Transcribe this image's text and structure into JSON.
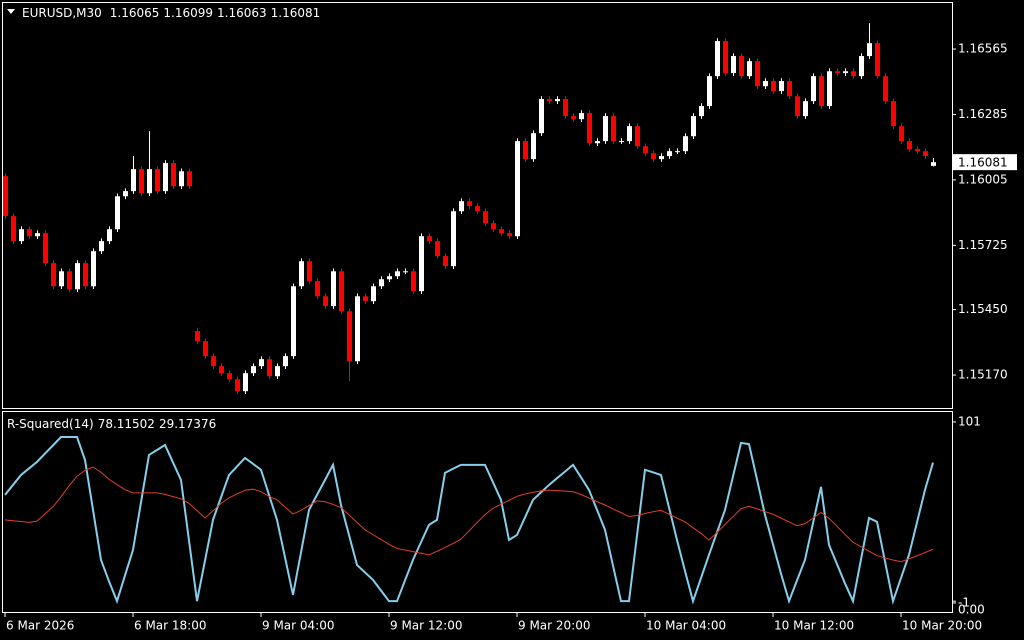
{
  "chart_data": [
    {
      "type": "candlestick",
      "title": "EURUSD,M30",
      "categories": [
        "6 Mar 2026",
        null,
        null,
        null,
        null,
        null,
        null,
        null,
        null,
        null,
        null,
        null,
        null,
        null,
        null,
        null,
        "6 Mar 18:00",
        null,
        null,
        null,
        null,
        null,
        null,
        null,
        null,
        null,
        null,
        null,
        null,
        null,
        null,
        null,
        "9 Mar 04:00",
        null,
        null,
        null,
        null,
        null,
        null,
        null,
        null,
        null,
        null,
        null,
        null,
        null,
        null,
        null,
        "9 Mar 12:00",
        null,
        null,
        null,
        null,
        null,
        null,
        null,
        null,
        null,
        null,
        null,
        null,
        null,
        null,
        null,
        "9 Mar 20:00",
        null,
        null,
        null,
        null,
        null,
        null,
        null,
        null,
        null,
        null,
        null,
        null,
        null,
        null,
        null,
        "10 Mar 04:00",
        null,
        null,
        null,
        null,
        null,
        null,
        null,
        null,
        null,
        null,
        null,
        null,
        null,
        null,
        null,
        "10 Mar 12:00",
        null,
        null,
        null,
        null,
        null,
        null,
        null,
        null,
        null,
        null,
        null,
        null,
        null,
        null,
        null,
        "10 Mar 20:00",
        null,
        null,
        null,
        null
      ],
      "open": [
        1.16021,
        1.1585,
        1.15743,
        1.15794,
        1.15764,
        1.15777,
        1.15649,
        1.1555,
        1.15614,
        1.15537,
        1.15649,
        1.1555,
        1.157,
        1.15743,
        1.15794,
        1.15935,
        1.15957,
        1.16051,
        1.15948,
        1.16051,
        1.15957,
        1.16077,
        1.15978,
        1.16042,
        1.15358,
        1.15315,
        1.15251,
        1.15208,
        1.15178,
        1.15152,
        1.15101,
        1.15178,
        1.15208,
        1.15238,
        1.15165,
        1.15208,
        1.15251,
        1.1555,
        1.15657,
        1.15572,
        1.15507,
        1.15465,
        1.15614,
        1.15443,
        1.15229,
        1.15507,
        1.15486,
        1.1555,
        1.1558,
        1.15593,
        1.15614,
        1.15614,
        1.15529,
        1.15764,
        1.15743,
        1.15679,
        1.15636,
        1.15871,
        1.15914,
        1.15893,
        1.15871,
        1.1582,
        1.15794,
        1.15777,
        1.15764,
        1.16171,
        1.16094,
        1.16205,
        1.16351,
        1.16342,
        1.16351,
        1.16278,
        1.16265,
        1.16291,
        1.16162,
        1.16171,
        1.16278,
        1.16171,
        1.16171,
        1.16235,
        1.16149,
        1.16119,
        1.16094,
        1.16107,
        1.16128,
        1.16128,
        1.16192,
        1.16278,
        1.16321,
        1.16449,
        1.16599,
        1.16462,
        1.16535,
        1.16449,
        1.16513,
        1.16406,
        1.16428,
        1.16385,
        1.16428,
        1.16363,
        1.16278,
        1.16342,
        1.16449,
        1.16321,
        1.1647,
        1.16462,
        1.1647,
        1.16449,
        1.16535,
        1.1659,
        1.16449,
        1.16342,
        1.16235,
        1.16171,
        1.16137,
        1.16128,
        1.16065
      ],
      "high": [
        1.16033,
        1.15862,
        1.15806,
        1.15806,
        1.15789,
        1.15789,
        1.15661,
        1.15626,
        1.15626,
        1.15661,
        1.15661,
        1.15712,
        1.15755,
        1.15806,
        1.15947,
        1.15969,
        1.16107,
        1.16063,
        1.16214,
        1.16063,
        1.16089,
        1.16089,
        1.16054,
        1.16054,
        1.1537,
        1.15327,
        1.15263,
        1.1522,
        1.1519,
        1.15164,
        1.1519,
        1.1522,
        1.1525,
        1.1525,
        1.1522,
        1.15263,
        1.15562,
        1.15669,
        1.15669,
        1.15584,
        1.15519,
        1.15626,
        1.15626,
        1.15455,
        1.15519,
        1.15519,
        1.15562,
        1.15592,
        1.15605,
        1.15626,
        1.15626,
        1.15626,
        1.15776,
        1.15776,
        1.15755,
        1.15691,
        1.15883,
        1.15926,
        1.15926,
        1.15905,
        1.15883,
        1.15832,
        1.15806,
        1.15789,
        1.16183,
        1.16183,
        1.16217,
        1.16363,
        1.16363,
        1.16363,
        1.16363,
        1.1629,
        1.16303,
        1.16303,
        1.16183,
        1.1629,
        1.1629,
        1.16183,
        1.16247,
        1.16247,
        1.16161,
        1.16131,
        1.16119,
        1.1614,
        1.1614,
        1.16204,
        1.1629,
        1.16333,
        1.16461,
        1.16611,
        1.16611,
        1.16547,
        1.16547,
        1.16525,
        1.16525,
        1.1644,
        1.1644,
        1.1644,
        1.1644,
        1.16375,
        1.16354,
        1.16461,
        1.16461,
        1.16482,
        1.16482,
        1.16482,
        1.16482,
        1.16547,
        1.16676,
        1.16602,
        1.16461,
        1.16354,
        1.16247,
        1.16183,
        1.16149,
        1.1614,
        1.16099
      ],
      "low": [
        1.15838,
        1.15731,
        1.15731,
        1.15752,
        1.15752,
        1.15637,
        1.15538,
        1.15538,
        1.15525,
        1.15525,
        1.15538,
        1.15538,
        1.15688,
        1.15731,
        1.15782,
        1.15923,
        1.15945,
        1.15936,
        1.15936,
        1.15945,
        1.15945,
        1.15966,
        1.15966,
        1.15966,
        1.15303,
        1.15239,
        1.15196,
        1.15166,
        1.1514,
        1.15089,
        1.15089,
        1.15166,
        1.15196,
        1.15153,
        1.15153,
        1.15196,
        1.15239,
        1.15538,
        1.1556,
        1.15495,
        1.15453,
        1.15453,
        1.15431,
        1.15144,
        1.15217,
        1.15474,
        1.15474,
        1.15538,
        1.15568,
        1.15581,
        1.15602,
        1.15517,
        1.15517,
        1.15731,
        1.15667,
        1.15624,
        1.15624,
        1.15859,
        1.15881,
        1.15859,
        1.15808,
        1.15782,
        1.15765,
        1.15752,
        1.15752,
        1.16082,
        1.16082,
        1.16193,
        1.1633,
        1.1633,
        1.16266,
        1.16253,
        1.16253,
        1.1615,
        1.1615,
        1.16159,
        1.16159,
        1.16159,
        1.16159,
        1.16137,
        1.16107,
        1.16082,
        1.16082,
        1.16095,
        1.16116,
        1.16116,
        1.1618,
        1.16266,
        1.16309,
        1.16437,
        1.1645,
        1.1645,
        1.16437,
        1.16437,
        1.16394,
        1.16394,
        1.16373,
        1.16373,
        1.16351,
        1.16266,
        1.16266,
        1.1633,
        1.16309,
        1.16309,
        1.1645,
        1.1645,
        1.16437,
        1.16437,
        1.16523,
        1.16437,
        1.1633,
        1.16223,
        1.16159,
        1.16125,
        1.16116,
        1.16095,
        1.16063
      ],
      "close": [
        1.1585,
        1.15743,
        1.15794,
        1.15764,
        1.15777,
        1.15649,
        1.1555,
        1.15614,
        1.15537,
        1.15649,
        1.1555,
        1.157,
        1.15743,
        1.15794,
        1.15935,
        1.15957,
        1.16051,
        1.15948,
        1.16051,
        1.15957,
        1.16077,
        1.15978,
        1.16042,
        1.15978,
        1.15315,
        1.15251,
        1.15208,
        1.15178,
        1.15152,
        1.15101,
        1.15178,
        1.15208,
        1.15238,
        1.15165,
        1.15208,
        1.15251,
        1.1555,
        1.15657,
        1.15572,
        1.15507,
        1.15465,
        1.15614,
        1.15443,
        1.15229,
        1.15507,
        1.15486,
        1.1555,
        1.1558,
        1.15593,
        1.15614,
        1.15614,
        1.15529,
        1.15764,
        1.15743,
        1.15679,
        1.15636,
        1.15871,
        1.15914,
        1.15893,
        1.15871,
        1.1582,
        1.15794,
        1.15777,
        1.15764,
        1.16171,
        1.16094,
        1.16205,
        1.16351,
        1.16342,
        1.16351,
        1.16278,
        1.16265,
        1.16291,
        1.16162,
        1.16171,
        1.16278,
        1.16171,
        1.16171,
        1.16235,
        1.16149,
        1.16119,
        1.16094,
        1.16107,
        1.16128,
        1.16128,
        1.16192,
        1.16278,
        1.16321,
        1.16449,
        1.16599,
        1.16462,
        1.16535,
        1.16449,
        1.16513,
        1.16406,
        1.16428,
        1.16385,
        1.16428,
        1.16363,
        1.16278,
        1.16342,
        1.16449,
        1.16321,
        1.1647,
        1.16462,
        1.1647,
        1.16449,
        1.16535,
        1.1659,
        1.16449,
        1.16342,
        1.16235,
        1.16171,
        1.16137,
        1.16128,
        1.16107,
        1.16081
      ],
      "up_color": "#ffffff",
      "down_color": "#ff0000",
      "ylim": [
        1.15029,
        1.16762
      ],
      "yticks": [
        1.16565,
        1.16285,
        1.16005,
        1.15725,
        {
          "value": 1.1545,
          "label": "1.15450"
        },
        {
          "value": 1.1517,
          "label": "1.15170"
        }
      ]
    },
    {
      "type": "line",
      "title": "R-Squared(14)",
      "series": [
        {
          "color": "#87ceeb",
          "values": [
            59.9,
            65.5,
            71.1,
            74.8,
            78.5,
            83.2,
            87.8,
            92.5,
            92.5,
            92.5,
            79.6,
            51.5,
            23.3,
            11.2,
            0,
            14.5,
            28.9,
            55.7,
            82.4,
            85.2,
            88,
            78.2,
            68.3,
            34.2,
            0,
            22.9,
            45.8,
            58.5,
            71.1,
            75.9,
            80.7,
            77.4,
            74,
            59.9,
            45.8,
            24.7,
            3.5,
            27.5,
            51.4,
            59.9,
            68.3,
            76.8,
            54.2,
            37.3,
            20.4,
            16.2,
            12,
            6,
            0,
            0,
            11.7,
            23.3,
            33.2,
            43,
            45.8,
            72.3,
            74.6,
            76.8,
            76.8,
            76.8,
            76.8,
            67,
            57.1,
            34.5,
            37.3,
            47.2,
            57.1,
            61.3,
            65.5,
            69.3,
            73,
            76.8,
            69.8,
            62.7,
            51.5,
            40.2,
            20,
            0,
            0,
            37,
            74,
            72.6,
            71.1,
            52.8,
            34.5,
            17,
            0,
            13,
            26.1,
            38.8,
            51.4,
            70.3,
            89.2,
            88.5,
            68.6,
            48.6,
            32,
            15.5,
            0,
            11.7,
            23.3,
            43.9,
            64.4,
            31.7,
            20.9,
            10,
            0,
            23.5,
            46.9,
            44.7,
            22.4,
            0,
            13.1,
            26.1,
            44.4,
            62.7,
            78.11502
          ]
        },
        {
          "color": "#e0402a",
          "values": [
            45.8,
            45.3,
            44.9,
            44.4,
            45.1,
            49.2,
            53.2,
            58.8,
            65,
            70.4,
            73.7,
            75.6,
            72.6,
            68.7,
            65.7,
            62.8,
            61,
            61,
            61,
            61,
            60.2,
            58.9,
            57.7,
            55.1,
            51,
            46.9,
            50.9,
            55.1,
            58.2,
            60.4,
            62.5,
            63.1,
            61.7,
            59.1,
            57.1,
            53.1,
            49.1,
            51.2,
            53.9,
            56.5,
            56.1,
            54.5,
            52.7,
            48.6,
            44.4,
            40.2,
            37.5,
            34.8,
            32,
            29.7,
            28.8,
            27.9,
            27,
            26.1,
            28.1,
            30.3,
            32.5,
            35,
            39.6,
            44.2,
            48.8,
            52.3,
            54.6,
            56.8,
            59.1,
            60.4,
            61.3,
            62.2,
            62.6,
            62.3,
            62,
            61.7,
            60.1,
            58.1,
            56.1,
            54.2,
            52,
            49.9,
            47.7,
            48.3,
            49.4,
            50.4,
            51.2,
            49,
            46.8,
            44.7,
            41.4,
            38.2,
            34.5,
            38.7,
            43.2,
            47.6,
            52.1,
            53.5,
            52,
            50.5,
            49,
            46.8,
            44.7,
            42.5,
            43.7,
            46.8,
            50,
            46.7,
            42.2,
            37.6,
            33.2,
            30.7,
            28.2,
            25.7,
            24.3,
            23.2,
            22.2,
            23.9,
            25.6,
            27.4,
            29.17376
          ]
        }
      ],
      "ylim": [
        -6.1,
        106.6
      ],
      "yticks": [
        101,
        -1,
        {
          "value": 0,
          "label": "0.00"
        }
      ]
    }
  ]
}
